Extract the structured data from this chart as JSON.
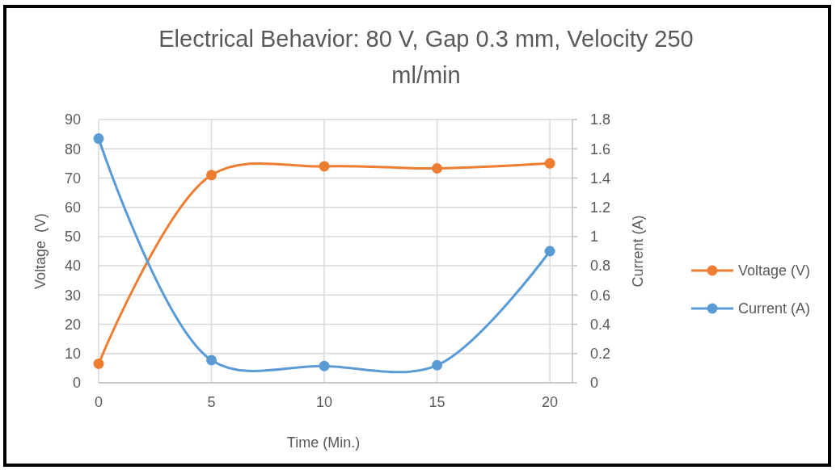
{
  "chart_data": {
    "type": "line",
    "title": "Electrical Behavior: 80 V, Gap 0.3 mm, Velocity 250 ml/min",
    "xlabel": "Time (Min.)",
    "ylabel": "Voltage  (V)",
    "y2label": "Current (A)",
    "x": [
      0,
      5,
      10,
      15,
      20
    ],
    "series": [
      {
        "name": "Voltage (V)",
        "color": "#ed7d31",
        "values": [
          6.5,
          71,
          74,
          73.3,
          75
        ]
      },
      {
        "name": "Current (A)",
        "color": "#5b9bd5",
        "axis": "y2",
        "values": [
          1.67,
          0.155,
          0.115,
          0.12,
          0.9
        ]
      }
    ],
    "xlim": [
      0,
      21
    ],
    "xticks": [
      0,
      5,
      10,
      15,
      20
    ],
    "ylim": [
      0,
      90
    ],
    "yticks": [
      0,
      10,
      20,
      30,
      40,
      50,
      60,
      70,
      80,
      90
    ],
    "y2lim": [
      0,
      1.8
    ],
    "y2ticks": [
      0,
      {
        "value": 0.2,
        "label": "0.2"
      },
      {
        "value": 0.4,
        "label": "0.4"
      },
      {
        "value": 0.6,
        "label": "0.6"
      },
      {
        "value": 0.8,
        "label": "0.8"
      },
      1,
      {
        "value": 1.2,
        "label": "1.2"
      },
      {
        "value": 1.4,
        "label": "1.4"
      },
      {
        "value": 1.6,
        "label": "1.6"
      },
      {
        "value": 1.8,
        "label": "1.8"
      }
    ],
    "grid": true,
    "legend": "right",
    "marker": "circle",
    "line_style": "solid"
  }
}
